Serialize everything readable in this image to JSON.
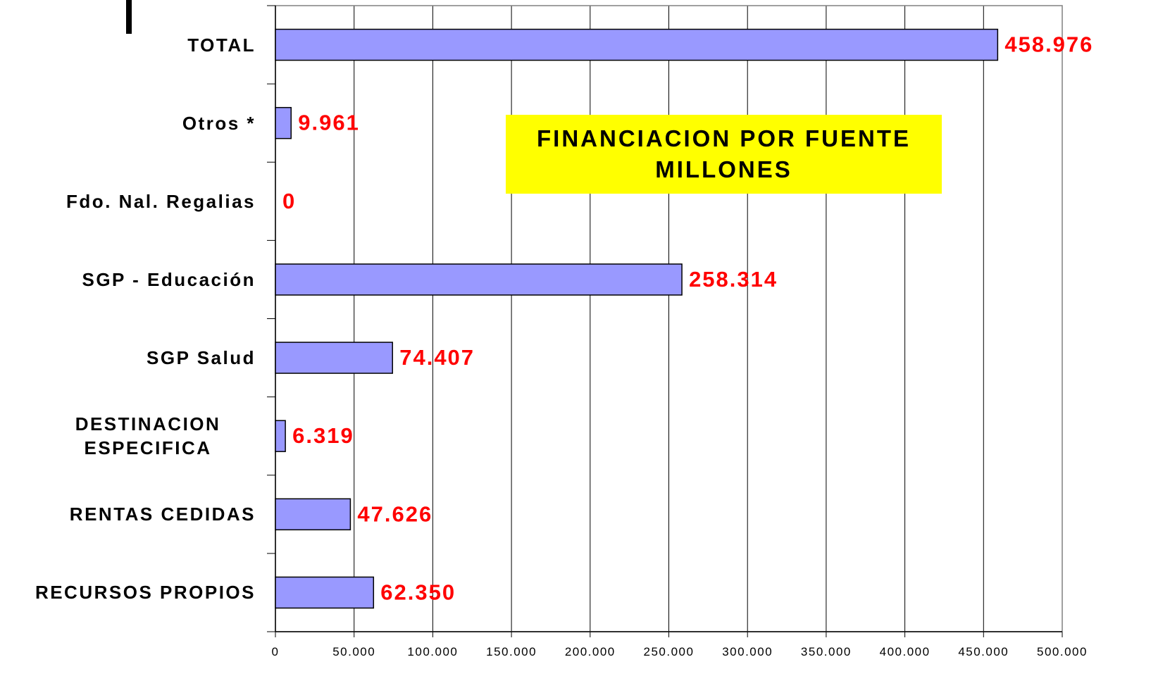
{
  "chart_data": {
    "type": "bar",
    "orientation": "horizontal",
    "title": "FINANCIACION POR FUENTE",
    "subtitle": "MILLONES",
    "categories": [
      "TOTAL",
      "Otros *",
      "Fdo. Nal. Regalias",
      "SGP - Educación",
      "SGP Salud",
      "DESTINACION\nESPECIFICA",
      "RENTAS CEDIDAS",
      "RECURSOS PROPIOS"
    ],
    "values": [
      458976,
      9961,
      0,
      258314,
      74407,
      6319,
      47626,
      62350
    ],
    "value_labels": [
      "458.976",
      "9.961",
      "0",
      "258.314",
      "74.407",
      "6.319",
      "47.626",
      "62.350"
    ],
    "color": "#9999ff",
    "label_color": "#ff0000",
    "title_background": "#ffff00",
    "xlim": [
      0,
      500000
    ],
    "xticks": [
      0,
      {
        "value": 50000,
        "label": "50.000"
      },
      {
        "value": 100000,
        "label": "100.000"
      },
      {
        "value": 150000,
        "label": "150.000"
      },
      {
        "value": 200000,
        "label": "200.000"
      },
      {
        "value": 250000,
        "label": "250.000"
      },
      {
        "value": 300000,
        "label": "300.000"
      },
      {
        "value": 350000,
        "label": "350.000"
      },
      {
        "value": 400000,
        "label": "400.000"
      },
      {
        "value": 450000,
        "label": "450.000"
      },
      {
        "value": 500000,
        "label": "500.000"
      }
    ],
    "grid": true
  }
}
